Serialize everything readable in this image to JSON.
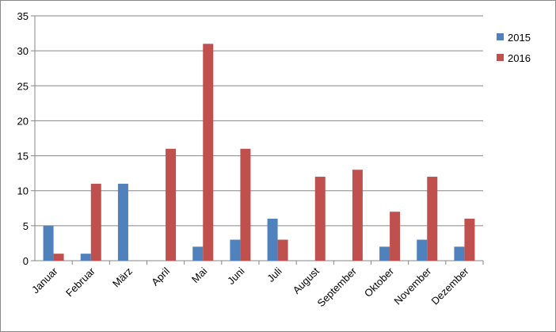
{
  "chart_data": {
    "type": "bar",
    "categories": [
      "Januar",
      "Februar",
      "März",
      "April",
      "Mai",
      "Juni",
      "Juli",
      "August",
      "September",
      "Oktober",
      "November",
      "Dezember"
    ],
    "series": [
      {
        "name": "2015",
        "color": "#4f81bd",
        "values": [
          5,
          1,
          11,
          0,
          2,
          3,
          6,
          0,
          0,
          2,
          3,
          2
        ]
      },
      {
        "name": "2016",
        "color": "#c0504d",
        "values": [
          1,
          11,
          0,
          16,
          31,
          16,
          3,
          12,
          13,
          7,
          12,
          6
        ]
      }
    ],
    "ylim": [
      0,
      35
    ],
    "yticks": [
      0,
      5,
      10,
      15,
      20,
      25,
      30,
      35
    ],
    "grid": true,
    "legend": "right"
  }
}
